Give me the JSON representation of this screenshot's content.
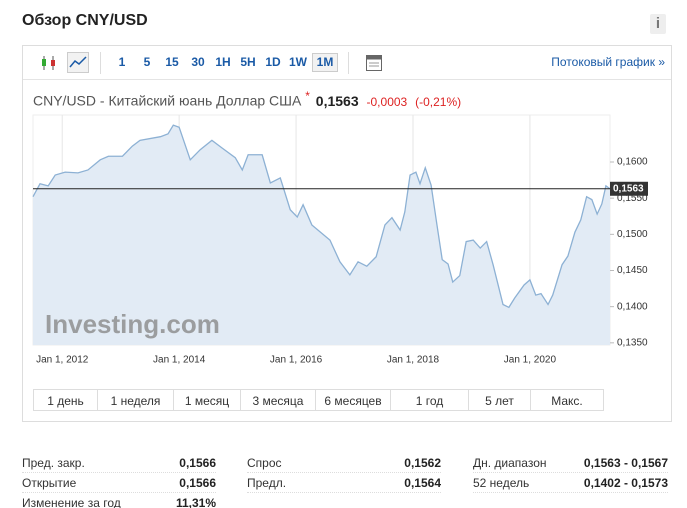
{
  "header": {
    "title": "Обзор CNY/USD",
    "info": "i"
  },
  "toolbar": {
    "intervals": [
      "1",
      "5",
      "15",
      "30",
      "1H",
      "5H",
      "1D",
      "1W",
      "1M"
    ],
    "selected": 8,
    "stream_link": "Потоковый график »"
  },
  "quote": {
    "name": "CNY/USD - Китайский юань Доллар США",
    "marker": "*",
    "price": "0,1563",
    "change": "-0,0003",
    "change_pct": "(-0,21%)"
  },
  "chart_data": {
    "type": "area",
    "watermark": "Investing.com",
    "color": "#8db1d4",
    "fill_color": "#e2ebf5",
    "grid": "x",
    "x": [
      2011.5,
      2011.62,
      2011.76,
      2011.88,
      2012.05,
      2012.27,
      2012.44,
      2012.65,
      2012.79,
      2013.03,
      2013.2,
      2013.33,
      2013.68,
      2013.81,
      2013.9,
      2014.0,
      2014.19,
      2014.36,
      2014.56,
      2014.74,
      2014.96,
      2015.08,
      2015.18,
      2015.42,
      2015.56,
      2015.73,
      2015.9,
      2016.02,
      2016.12,
      2016.27,
      2016.58,
      2016.75,
      2016.92,
      2017.06,
      2017.21,
      2017.37,
      2017.52,
      2017.64,
      2017.78,
      2017.86,
      2017.95,
      2018.05,
      2018.12,
      2018.21,
      2018.31,
      2018.41,
      2018.5,
      2018.6,
      2018.68,
      2018.8,
      2018.91,
      2019.03,
      2019.15,
      2019.26,
      2019.37,
      2019.54,
      2019.64,
      2019.74,
      2019.9,
      2020.0,
      2020.1,
      2020.19,
      2020.31,
      2020.39,
      2020.55,
      2020.65,
      2020.77,
      2020.87,
      2020.97,
      2021.06,
      2021.15,
      2021.23,
      2021.3,
      2021.37
    ],
    "values": [
      0.1552,
      0.157,
      0.1567,
      0.1582,
      0.1586,
      0.1585,
      0.1589,
      0.1603,
      0.1608,
      0.1608,
      0.1622,
      0.163,
      0.1635,
      0.1639,
      0.1651,
      0.1648,
      0.1603,
      0.1617,
      0.163,
      0.1619,
      0.1606,
      0.1589,
      0.161,
      0.161,
      0.1571,
      0.1578,
      0.1534,
      0.1524,
      0.1541,
      0.1513,
      0.1492,
      0.1462,
      0.1444,
      0.1462,
      0.1456,
      0.1469,
      0.1513,
      0.1523,
      0.1506,
      0.1531,
      0.1582,
      0.1586,
      0.157,
      0.1592,
      0.1568,
      0.1513,
      0.1465,
      0.1459,
      0.1434,
      0.1443,
      0.149,
      0.1492,
      0.1481,
      0.149,
      0.1458,
      0.1403,
      0.1399,
      0.1412,
      0.143,
      0.1437,
      0.1416,
      0.1418,
      0.1403,
      0.1416,
      0.1458,
      0.147,
      0.1503,
      0.152,
      0.1552,
      0.1548,
      0.1528,
      0.1542,
      0.1567,
      0.1563
    ],
    "xlim": [
      2011.5,
      2021.37
    ],
    "xticks": [
      {
        "value": 2012,
        "label": "Jan 1, 2012"
      },
      {
        "value": 2014,
        "label": "Jan 1, 2014"
      },
      {
        "value": 2016,
        "label": "Jan 1, 2016"
      },
      {
        "value": 2018,
        "label": "Jan 1, 2018"
      },
      {
        "value": 2020,
        "label": "Jan 1, 2020"
      }
    ],
    "ylim": [
      0.1347,
      0.1665
    ],
    "yticks": [
      {
        "value": 0.16,
        "label": "0,1600"
      },
      {
        "value": 0.155,
        "label": "0,1550"
      },
      {
        "value": 0.15,
        "label": "0,1500"
      },
      {
        "value": 0.145,
        "label": "0,1450"
      },
      {
        "value": 0.14,
        "label": "0,1400"
      },
      {
        "value": 0.135,
        "label": "0,1350"
      }
    ],
    "reference_line": {
      "value": 0.1563,
      "label": "0,1563"
    }
  },
  "ranges": [
    "1 день",
    "1 неделя",
    "1 месяц",
    "3 месяца",
    "6 месяцев",
    "1 год",
    "5 лет",
    "Макс."
  ],
  "stats": [
    [
      [
        "Пред. закр.",
        "0,1566"
      ],
      [
        "Спрос",
        "0,1562"
      ],
      [
        "Дн. диапазон",
        "0,1563 - 0,1567"
      ]
    ],
    [
      [
        "Открытие",
        "0,1566"
      ],
      [
        "Предл.",
        "0,1564"
      ],
      [
        "52 недель",
        "0,1402 - 0,1573"
      ]
    ],
    [
      [
        "Изменение за год",
        "11,31%"
      ]
    ]
  ]
}
